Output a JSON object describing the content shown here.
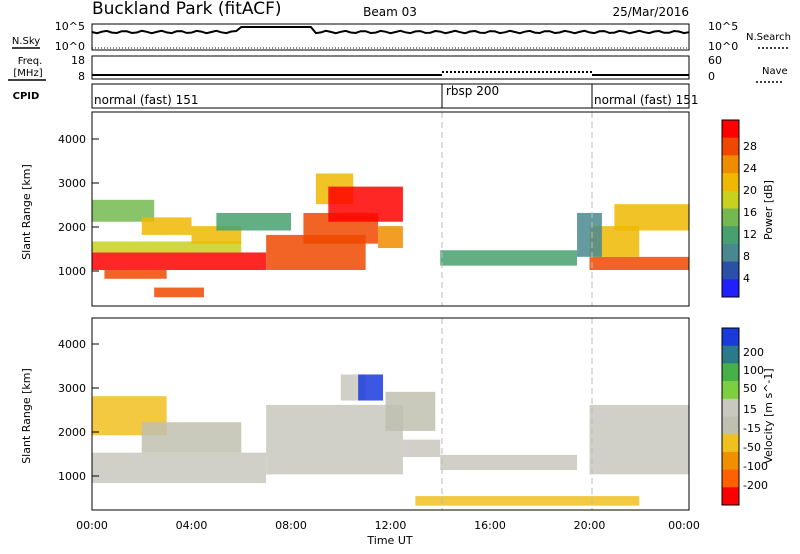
{
  "header": {
    "title": "Buckland Park (fitACF)",
    "beam": "Beam 03",
    "date": "25/Mar/2016"
  },
  "strips": {
    "nsky_label": "N.Sky",
    "nsearch_label": "N.Search",
    "freq_label_1": "Freq.",
    "freq_label_2": "[MHz]",
    "nave_label": "Nave",
    "cpid_label": "CPID",
    "nsky_ticks": [
      "10^5",
      "10^0"
    ],
    "nsearch_ticks": [
      "10^5",
      "10^0"
    ],
    "freq_ticks": [
      "18",
      "8"
    ],
    "nave_ticks": [
      "60",
      "0"
    ],
    "cpid_segments": [
      {
        "label": "normal (fast) 151",
        "start": 0,
        "end": 14
      },
      {
        "label": "rbsp 200",
        "start": 14,
        "end": 20
      },
      {
        "label": "normal (fast) 151",
        "start": 20,
        "end": 24
      }
    ]
  },
  "colors": {
    "power_scale": [
      "#2020ff",
      "#2a50a8",
      "#4a8890",
      "#48a070",
      "#74b850",
      "#c8d020",
      "#f0b800",
      "#f08c00",
      "#f04800",
      "#ff0000"
    ],
    "velocity_scale": [
      "#ff0000",
      "#ff6000",
      "#f09000",
      "#f0c020",
      "#c0c0b0",
      "#c8c8c0",
      "#7cd040",
      "#48b048",
      "#2a7a8a",
      "#1a3adc"
    ]
  },
  "chart_data": [
    {
      "type": "heatmap",
      "title": "Power",
      "xlabel": "Time UT",
      "ylabel": "Slant Range [km]",
      "colorbar_label": "Power [dB]",
      "x_ticks": [
        "00:00",
        "04:00",
        "08:00",
        "12:00",
        "16:00",
        "20:00",
        "00:00"
      ],
      "y_ticks": [
        "1000",
        "2000",
        "3000",
        "4000"
      ],
      "colorbar_ticks": [
        "28",
        "24",
        "20",
        "16",
        "12",
        "8",
        "4"
      ],
      "xlim": [
        0,
        24
      ],
      "ylim": [
        180,
        4600
      ],
      "colorbar_range": [
        0,
        32
      ],
      "mode_boundaries": [
        14,
        20
      ],
      "regions": [
        {
          "t0": 0,
          "t1": 7,
          "r0": 1000,
          "r1": 1400,
          "value": 30
        },
        {
          "t0": 0.5,
          "t1": 3,
          "r0": 800,
          "r1": 1000,
          "value": 28
        },
        {
          "t0": 2.5,
          "t1": 4.5,
          "r0": 380,
          "r1": 600,
          "value": 26
        },
        {
          "t0": 0,
          "t1": 6,
          "r0": 1400,
          "r1": 1650,
          "value": 18
        },
        {
          "t0": 0,
          "t1": 2.5,
          "r0": 2100,
          "r1": 2600,
          "value": 14
        },
        {
          "t0": 2,
          "t1": 4,
          "r0": 1800,
          "r1": 2200,
          "value": 22
        },
        {
          "t0": 4,
          "t1": 6,
          "r0": 1600,
          "r1": 2000,
          "value": 20
        },
        {
          "t0": 5,
          "t1": 8,
          "r0": 1900,
          "r1": 2300,
          "value": 10
        },
        {
          "t0": 7,
          "t1": 11,
          "r0": 1000,
          "r1": 1800,
          "value": 26
        },
        {
          "t0": 8.5,
          "t1": 11.5,
          "r0": 1600,
          "r1": 2300,
          "value": 28
        },
        {
          "t0": 9,
          "t1": 10.5,
          "r0": 2500,
          "r1": 3200,
          "value": 20
        },
        {
          "t0": 9.5,
          "t1": 12.5,
          "r0": 2100,
          "r1": 2900,
          "value": 30
        },
        {
          "t0": 11.5,
          "t1": 12.5,
          "r0": 1500,
          "r1": 2000,
          "value": 24
        },
        {
          "t0": 14,
          "t1": 19.5,
          "r0": 1100,
          "r1": 1450,
          "value": 12
        },
        {
          "t0": 20,
          "t1": 24,
          "r0": 1000,
          "r1": 1300,
          "value": 28
        },
        {
          "t0": 20,
          "t1": 22,
          "r0": 1300,
          "r1": 2000,
          "value": 22
        },
        {
          "t0": 21,
          "t1": 24,
          "r0": 1900,
          "r1": 2500,
          "value": 20
        },
        {
          "t0": 19.5,
          "t1": 20.5,
          "r0": 1300,
          "r1": 2300,
          "value": 8
        }
      ]
    },
    {
      "type": "heatmap",
      "title": "Velocity",
      "xlabel": "Time UT",
      "ylabel": "Slant Range [km]",
      "colorbar_label": "Velocity [m s^-1]",
      "x_ticks": [
        "00:00",
        "04:00",
        "08:00",
        "12:00",
        "16:00",
        "20:00",
        "00:00"
      ],
      "y_ticks": [
        "1000",
        "2000",
        "3000",
        "4000"
      ],
      "colorbar_ticks": [
        "200",
        "100",
        "50",
        "15",
        "-15",
        "-50",
        "-100",
        "-200"
      ],
      "xlim": [
        0,
        24
      ],
      "ylim": [
        180,
        4600
      ],
      "colorbar_range": [
        -250,
        250
      ],
      "mode_boundaries": [
        14,
        20
      ],
      "regions": [
        {
          "t0": 0,
          "t1": 7,
          "r0": 800,
          "r1": 1500,
          "value": 0
        },
        {
          "t0": 7,
          "t1": 12.5,
          "r0": 1000,
          "r1": 2600,
          "value": 0
        },
        {
          "t0": 0,
          "t1": 3,
          "r0": 1900,
          "r1": 2800,
          "value": -60
        },
        {
          "t0": 2,
          "t1": 6,
          "r0": 1500,
          "r1": 2200,
          "value": -40
        },
        {
          "t0": 10,
          "t1": 11,
          "r0": 2700,
          "r1": 3300,
          "value": 40
        },
        {
          "t0": 10.7,
          "t1": 11.7,
          "r0": 2700,
          "r1": 3300,
          "value": 220
        },
        {
          "t0": 11.8,
          "t1": 13.8,
          "r0": 2000,
          "r1": 2900,
          "value": -30
        },
        {
          "t0": 12.5,
          "t1": 14,
          "r0": 1400,
          "r1": 1800,
          "value": 30
        },
        {
          "t0": 14,
          "t1": 19.5,
          "r0": 1100,
          "r1": 1450,
          "value": 10
        },
        {
          "t0": 20,
          "t1": 24,
          "r0": 1000,
          "r1": 2600,
          "value": 0
        },
        {
          "t0": 13,
          "t1": 22,
          "r0": 280,
          "r1": 500,
          "value": -80
        }
      ]
    }
  ]
}
